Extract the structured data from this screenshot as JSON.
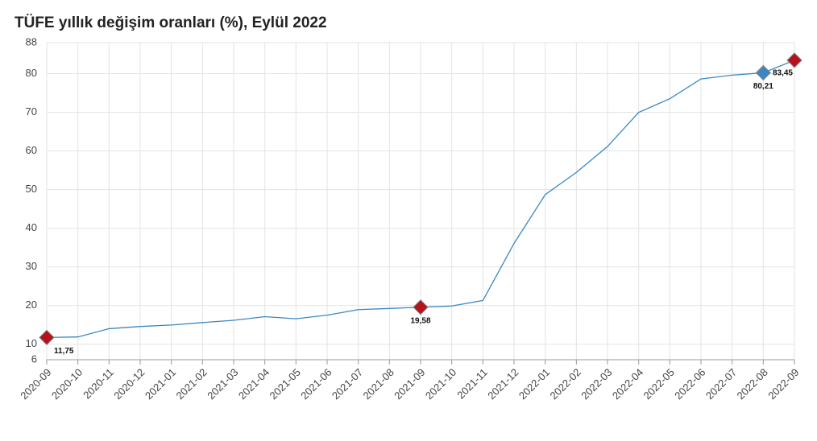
{
  "chart_data": {
    "type": "line",
    "title": "TÜFE yıllık değişim oranları (%), Eylül 2022",
    "categories": [
      "2020-09",
      "2020-10",
      "2020-11",
      "2020-12",
      "2021-01",
      "2021-02",
      "2021-03",
      "2021-04",
      "2021-05",
      "2021-06",
      "2021-07",
      "2021-08",
      "2021-09",
      "2021-10",
      "2021-11",
      "2021-12",
      "2022-01",
      "2022-02",
      "2022-03",
      "2022-04",
      "2022-05",
      "2022-06",
      "2022-07",
      "2022-08",
      "2022-09"
    ],
    "values": [
      11.75,
      11.89,
      14.03,
      14.6,
      14.97,
      15.61,
      16.19,
      17.14,
      16.59,
      17.53,
      18.95,
      19.25,
      19.58,
      19.89,
      21.31,
      36.08,
      48.69,
      54.44,
      61.14,
      69.97,
      73.5,
      78.62,
      79.6,
      80.21,
      83.45
    ],
    "value_labels": [
      "11,75",
      null,
      null,
      null,
      null,
      null,
      null,
      null,
      null,
      null,
      null,
      null,
      "19,58",
      null,
      null,
      null,
      null,
      null,
      null,
      null,
      null,
      null,
      null,
      "80,21",
      "83,45"
    ],
    "marker_colors": [
      "#b5121b",
      null,
      null,
      null,
      null,
      null,
      null,
      null,
      null,
      null,
      null,
      null,
      "#b5121b",
      null,
      null,
      null,
      null,
      null,
      null,
      null,
      null,
      null,
      null,
      "#3a87c2",
      "#b5121b"
    ],
    "color": "#3a87c2",
    "ylim": [
      6,
      88
    ],
    "yticks": [
      6,
      10,
      20,
      30,
      40,
      50,
      60,
      70,
      80,
      88
    ],
    "grid": true
  }
}
